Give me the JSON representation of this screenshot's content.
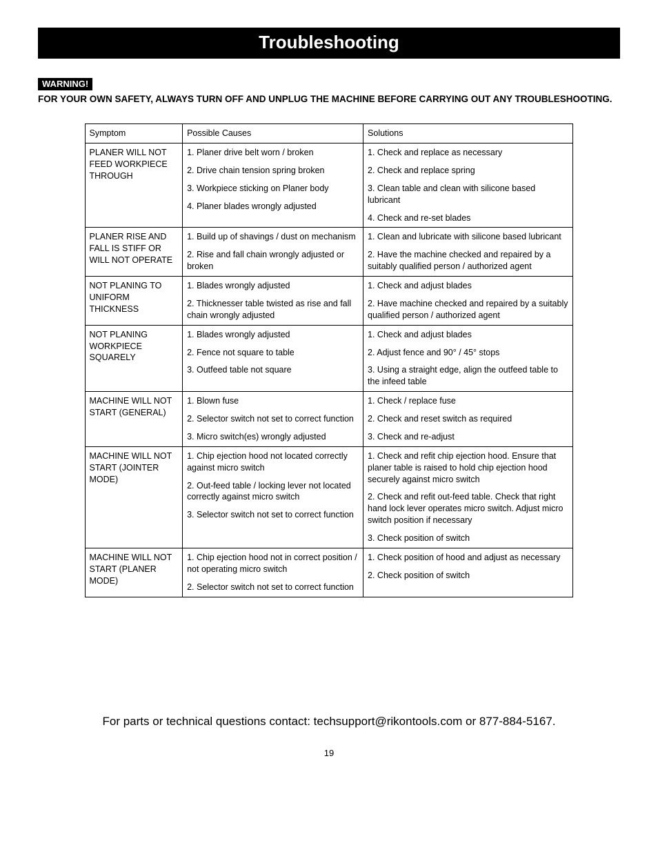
{
  "title": "Troubleshooting",
  "warning_label": "WARNING!",
  "warning_text": "FOR YOUR OWN SAFETY, ALWAYS TURN OFF AND UNPLUG THE MACHINE BEFORE CARRYING OUT ANY TROUBLESHOOTING.",
  "headers": {
    "c1": "Symptom",
    "c2": "Possible Causes",
    "c3": "Solutions"
  },
  "rows": [
    {
      "symptom": "PLANER  WILL NOT FEED WORKPIECE THROUGH",
      "causes": [
        "1. Planer drive belt worn / broken",
        "2. Drive chain tension spring broken",
        "3. Workpiece sticking on Planer body",
        "4. Planer blades wrongly adjusted"
      ],
      "solutions": [
        "1. Check and replace as necessary",
        "2. Check and replace spring",
        "3. Clean table and clean with silicone based lubricant",
        "4. Check and re-set blades"
      ]
    },
    {
      "symptom": "PLANER  RISE AND FALL IS STIFF OR WILL NOT OPERATE",
      "causes": [
        "1. Build up of shavings / dust on mechanism",
        "2. Rise and fall chain wrongly adjusted or broken"
      ],
      "solutions": [
        "1. Clean and lubricate with silicone based lubricant",
        "2. Have the machine checked and repaired by a suitably qualified person / authorized agent"
      ]
    },
    {
      "symptom": "NOT PLANING  TO UNIFORM THICKNESS",
      "causes": [
        "1. Blades wrongly adjusted",
        "2. Thicknesser table twisted as rise and fall chain wrongly adjusted"
      ],
      "solutions": [
        "1. Check and adjust blades",
        "2. Have machine checked and repaired by a suitably qualified person / authorized agent"
      ]
    },
    {
      "symptom": "NOT PLANING WORKPIECE SQUARELY",
      "causes": [
        "1. Blades wrongly adjusted",
        "2. Fence not square to table",
        "3. Outfeed table not square"
      ],
      "solutions": [
        "1. Check and adjust blades",
        "2. Adjust fence and 90° / 45° stops",
        "3. Using a straight edge, align the outfeed table to the infeed table"
      ]
    },
    {
      "symptom": "MACHINE WILL NOT START (GENERAL)",
      "causes": [
        "1. Blown fuse",
        "2. Selector switch not set to correct function",
        "3. Micro switch(es) wrongly adjusted"
      ],
      "solutions": [
        "1. Check / replace fuse",
        "2. Check and reset switch as required",
        "3. Check and re-adjust"
      ]
    },
    {
      "symptom": "MACHINE WILL NOT START (JOINTER\nMODE)",
      "causes": [
        "1. Chip ejection hood not located correctly against micro switch",
        "2. Out-feed table / locking lever not located correctly against micro switch",
        "3. Selector switch not set to correct function"
      ],
      "solutions": [
        "1. Check and refit chip ejection hood. Ensure that planer table is raised to hold chip ejection hood securely against micro switch",
        "2. Check and refit out-feed table. Check that right hand lock lever operates micro switch. Adjust micro switch position if necessary",
        "3. Check position of switch"
      ]
    },
    {
      "symptom": "MACHINE WILL NOT START (PLANER MODE)",
      "causes": [
        "1. Chip ejection hood not in correct position / not operating micro switch",
        "2. Selector switch not set to correct function"
      ],
      "solutions": [
        "1. Check position of hood and adjust as necessary",
        "2. Check position of switch"
      ]
    }
  ],
  "footer": "For parts or technical questions contact: techsupport@rikontools.com or 877-884-5167.",
  "page": "19",
  "style": {
    "title_bg": "#000000",
    "title_fg": "#ffffff",
    "border_color": "#000000",
    "body_font": "Arial",
    "body_fontsize": 13,
    "title_fontsize": 26
  }
}
